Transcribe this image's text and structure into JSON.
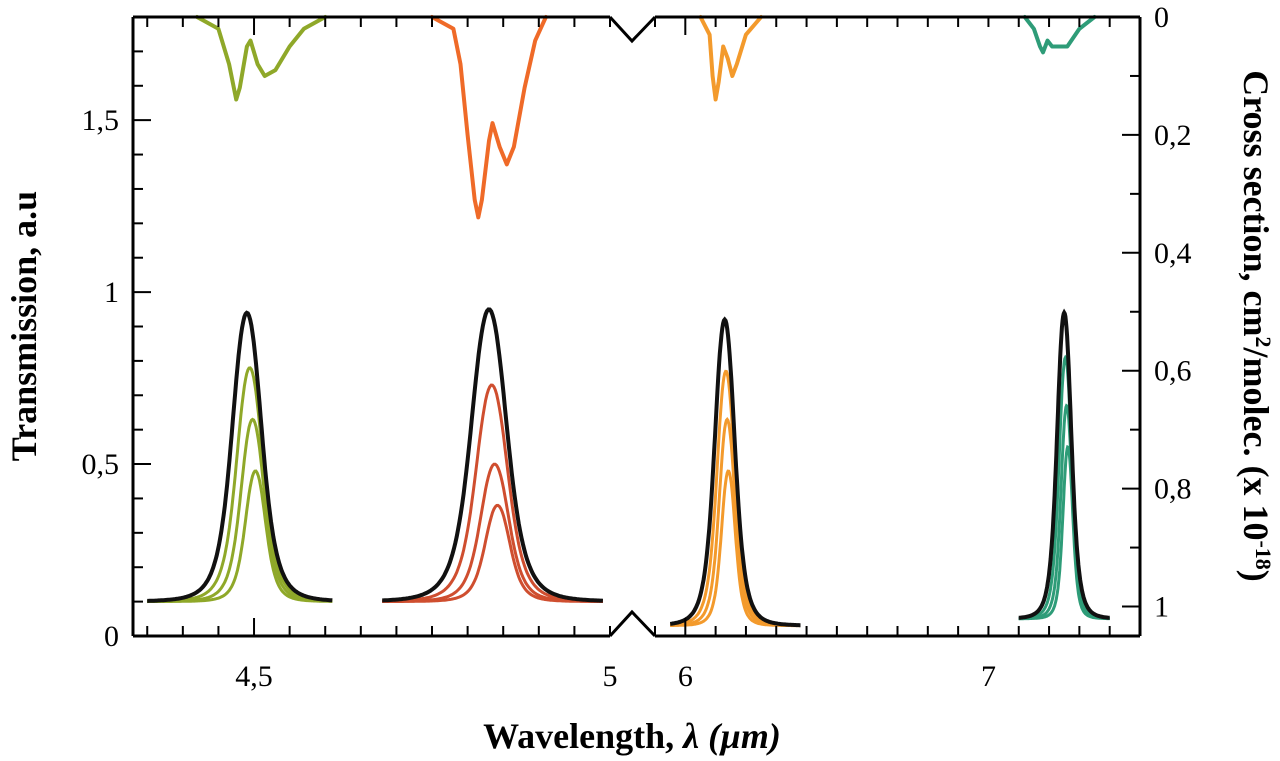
{
  "chart_data": {
    "type": "line",
    "title": "",
    "xlabel_prefix": "Wavelength, ",
    "xlabel_symbol": "λ",
    "xlabel_unit": " (µm)",
    "ylabel": "Transmission, a.u",
    "y2label_prefix": "Cross section, cm",
    "y2label_sup1": "2",
    "y2label_mid": "/molec. (x 10",
    "y2label_sup2": "-18",
    "y2label_suffix": ")",
    "ylim": [
      0,
      1.8
    ],
    "y2lim": [
      0,
      1.05
    ],
    "y2_inverted": true,
    "x_axis_broken": true,
    "x_segments": [
      {
        "xlim": [
          4.33,
          5.0
        ]
      },
      {
        "xlim": [
          5.9,
          7.5
        ]
      }
    ],
    "x_ticks": [
      {
        "label": "4,5"
      },
      {
        "label": "5"
      },
      {
        "label": "6"
      },
      {
        "label": "7"
      }
    ],
    "y_ticks": [
      {
        "value": 0,
        "label": "0"
      },
      {
        "value": 0.5,
        "label": "0,5"
      },
      {
        "value": 1,
        "label": "1"
      },
      {
        "value": 1.5,
        "label": "1,5"
      }
    ],
    "y2_ticks": [
      {
        "value": 0,
        "label": "0"
      },
      {
        "value": 0.2,
        "label": "0,2"
      },
      {
        "value": 0.4,
        "label": "0,4"
      },
      {
        "value": 0.6,
        "label": "0,6"
      },
      {
        "value": 0.8,
        "label": "0,8"
      },
      {
        "value": 1,
        "label": "1"
      }
    ],
    "colors": {
      "olive": "#8fa829",
      "red": "#cf4e2f",
      "orange": "#f39a2c",
      "green": "#2e9c78",
      "black": "#111111",
      "cs_red": "#ef6a28"
    },
    "transmission_peaks": [
      {
        "name": "olive-filter",
        "center": 4.49,
        "baseline": 0.1,
        "black_peak": 0.94,
        "color": "olive",
        "scaled_peaks": [
          0.78,
          0.63,
          0.48
        ]
      },
      {
        "name": "red-filter",
        "center": 4.83,
        "baseline": 0.1,
        "black_peak": 0.95,
        "color": "red",
        "scaled_peaks": [
          0.73,
          0.5,
          0.38
        ]
      },
      {
        "name": "orange-filter",
        "center": 6.13,
        "baseline": 0.03,
        "black_peak": 0.92,
        "color": "orange",
        "scaled_peaks": [
          0.77,
          0.63,
          0.48
        ]
      },
      {
        "name": "green-filter",
        "center": 7.25,
        "baseline": 0.05,
        "black_peak": 0.94,
        "color": "green",
        "scaled_peaks": [
          0.81,
          0.67,
          0.55
        ]
      }
    ],
    "cross_section_series": [
      {
        "name": "cs-olive",
        "color": "olive",
        "points": [
          [
            4.42,
            0.0
          ],
          [
            4.45,
            0.02
          ],
          [
            4.465,
            0.08
          ],
          [
            4.475,
            0.14
          ],
          [
            4.48,
            0.12
          ],
          [
            4.49,
            0.05
          ],
          [
            4.495,
            0.04
          ],
          [
            4.505,
            0.08
          ],
          [
            4.515,
            0.1
          ],
          [
            4.53,
            0.09
          ],
          [
            4.55,
            0.05
          ],
          [
            4.57,
            0.02
          ],
          [
            4.6,
            0.0
          ]
        ]
      },
      {
        "name": "cs-red",
        "color": "cs_red",
        "points": [
          [
            4.75,
            0.0
          ],
          [
            4.78,
            0.02
          ],
          [
            4.79,
            0.08
          ],
          [
            4.8,
            0.2
          ],
          [
            4.81,
            0.31
          ],
          [
            4.815,
            0.34
          ],
          [
            4.82,
            0.31
          ],
          [
            4.83,
            0.21
          ],
          [
            4.835,
            0.18
          ],
          [
            4.845,
            0.22
          ],
          [
            4.855,
            0.25
          ],
          [
            4.865,
            0.22
          ],
          [
            4.88,
            0.12
          ],
          [
            4.895,
            0.04
          ],
          [
            4.91,
            0.0
          ]
        ]
      },
      {
        "name": "cs-orange",
        "color": "orange",
        "points": [
          [
            6.05,
            0.0
          ],
          [
            6.08,
            0.03
          ],
          [
            6.09,
            0.1
          ],
          [
            6.1,
            0.14
          ],
          [
            6.11,
            0.11
          ],
          [
            6.125,
            0.05
          ],
          [
            6.14,
            0.07
          ],
          [
            6.155,
            0.1
          ],
          [
            6.17,
            0.08
          ],
          [
            6.2,
            0.03
          ],
          [
            6.25,
            0.0
          ]
        ]
      },
      {
        "name": "cs-green",
        "color": "green",
        "points": [
          [
            7.12,
            0.0
          ],
          [
            7.15,
            0.02
          ],
          [
            7.17,
            0.05
          ],
          [
            7.18,
            0.06
          ],
          [
            7.195,
            0.04
          ],
          [
            7.21,
            0.05
          ],
          [
            7.23,
            0.05
          ],
          [
            7.26,
            0.05
          ],
          [
            7.3,
            0.02
          ],
          [
            7.35,
            0.0
          ]
        ]
      }
    ]
  }
}
